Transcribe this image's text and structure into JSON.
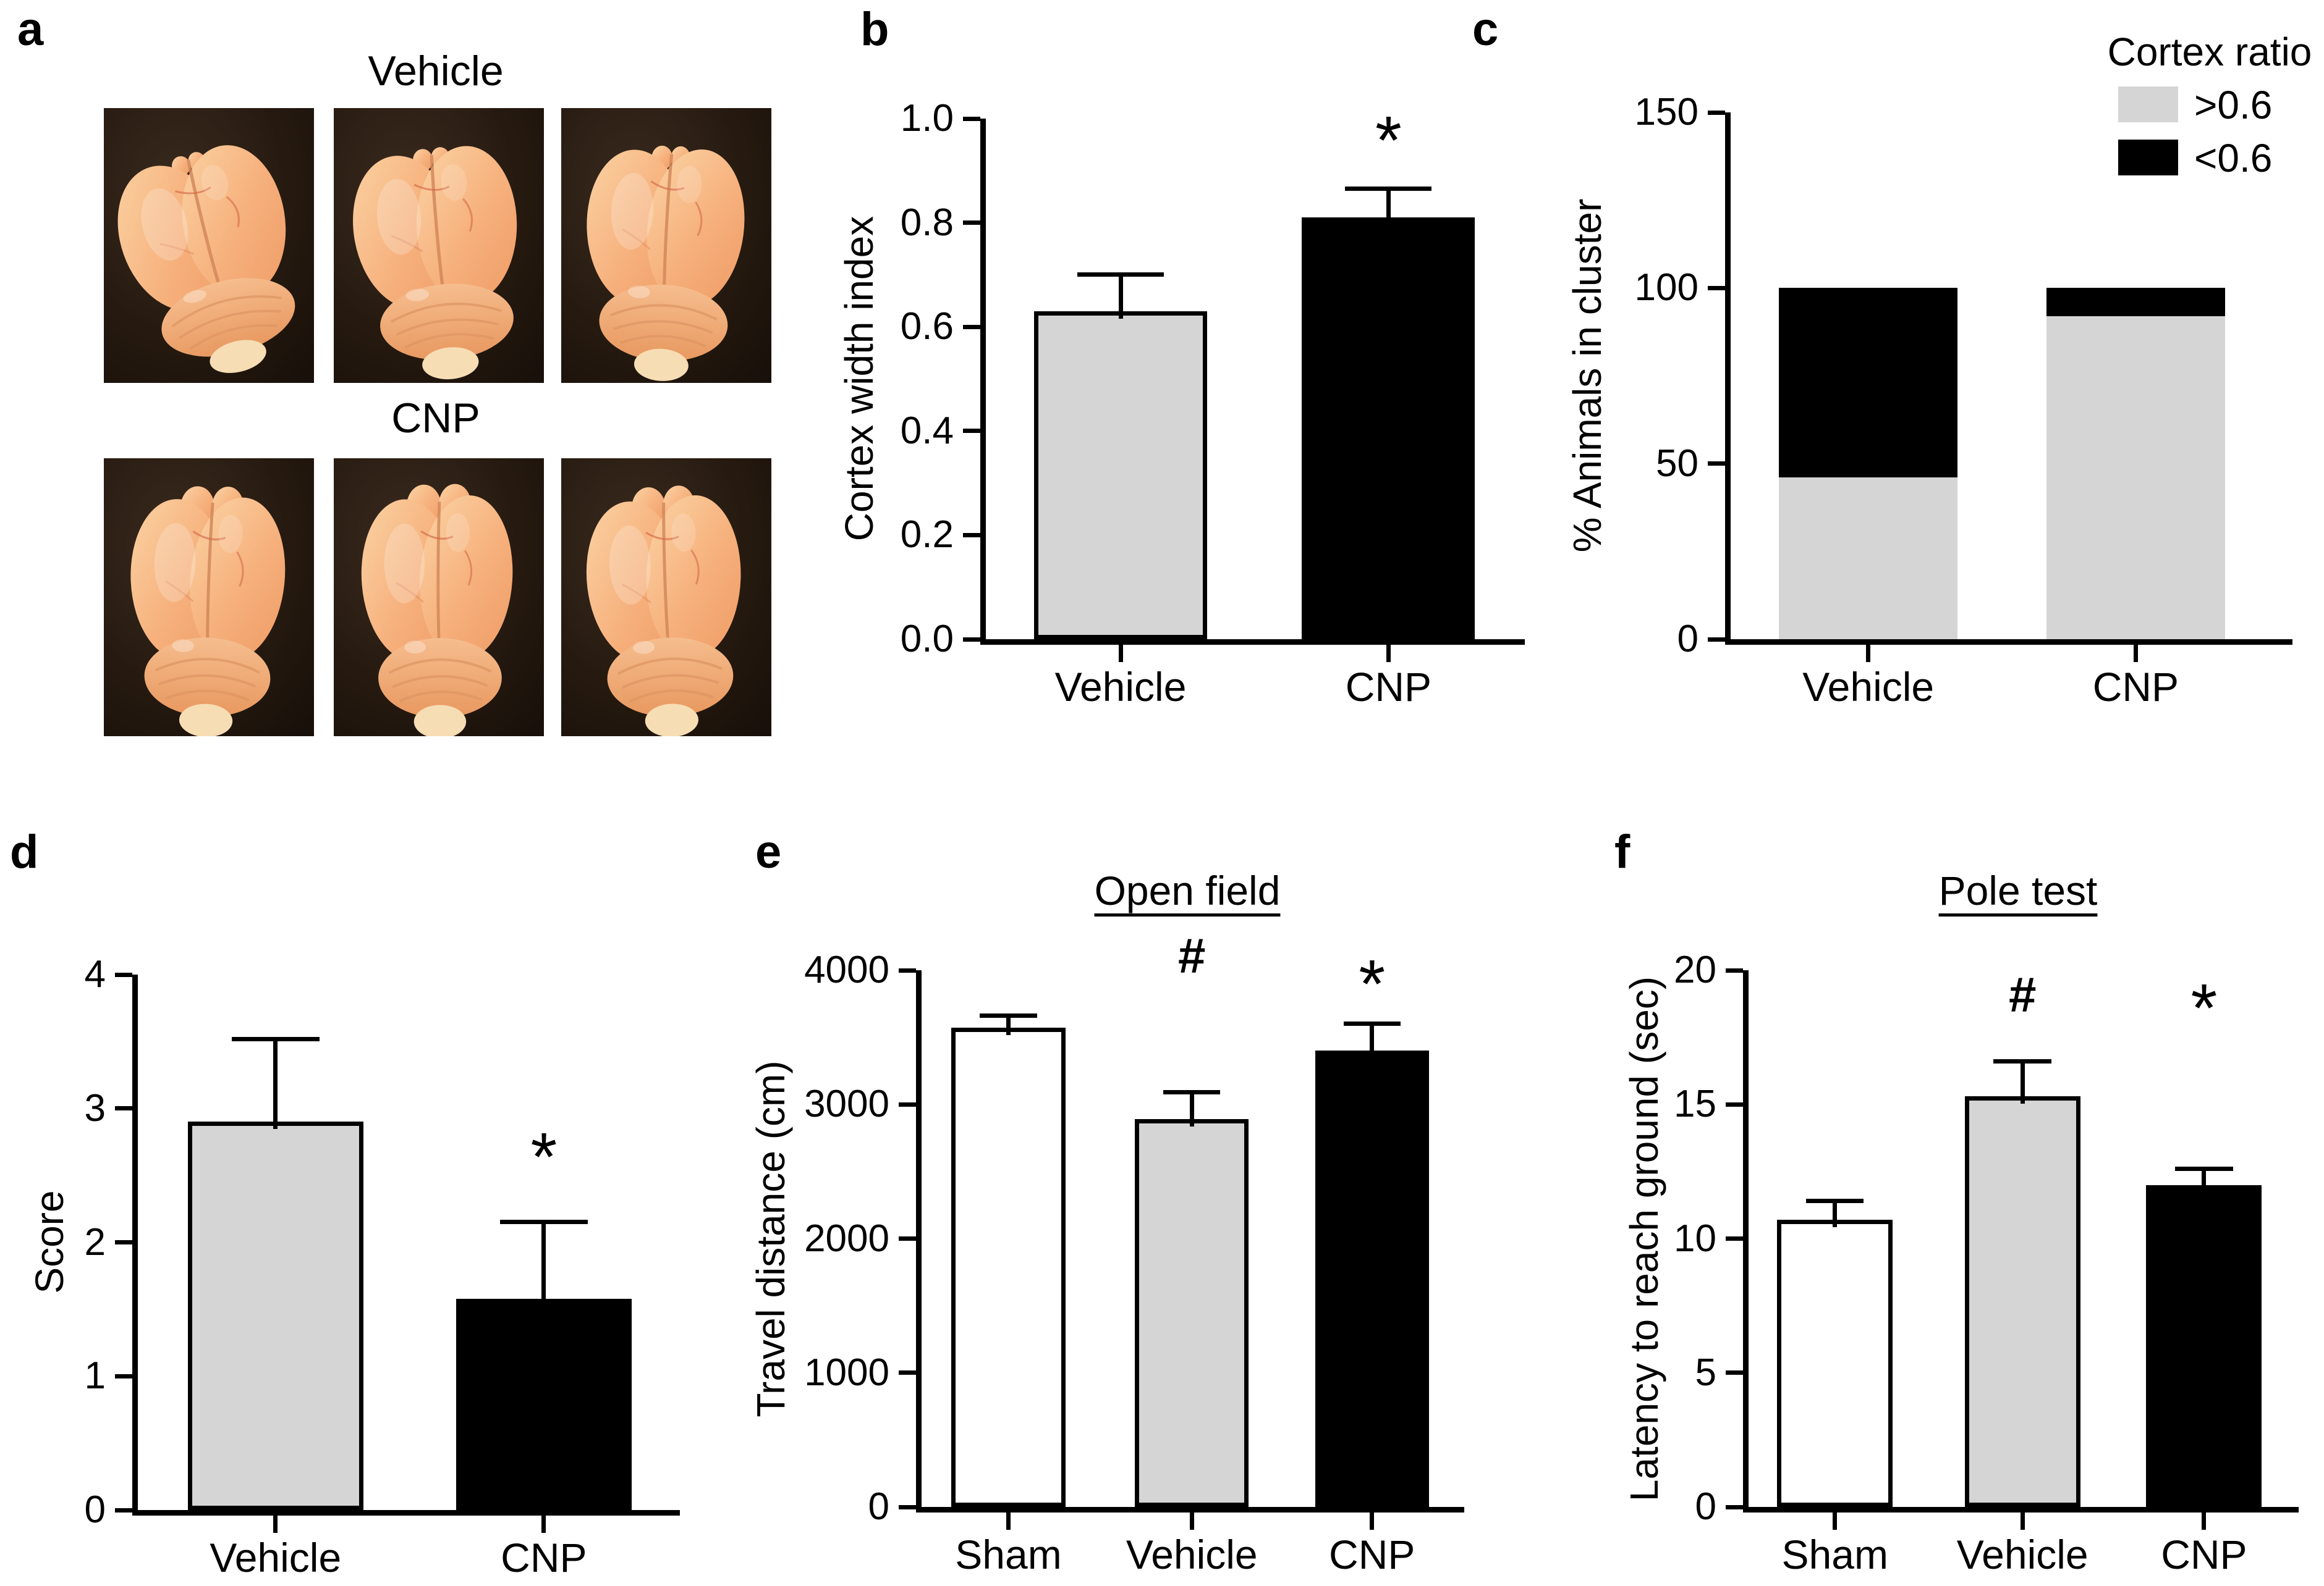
{
  "letters": {
    "a": "a",
    "b": "b",
    "c": "c",
    "d": "d",
    "e": "e",
    "f": "f"
  },
  "panel_a": {
    "groups": [
      {
        "label": "Vehicle",
        "photo_count": 3
      },
      {
        "label": "CNP",
        "photo_count": 3
      }
    ]
  },
  "colors": {
    "gray_fill": "#d5d5d5",
    "black_fill": "#000000",
    "white_fill": "#ffffff",
    "axis": "#000000",
    "photo_background": "#241a12",
    "brain_tissue": "#f6b07c"
  },
  "chart_data": [
    {
      "panel": "b",
      "type": "bar",
      "title": "",
      "ylabel": "Cortex width index",
      "ylim": [
        0,
        1.0
      ],
      "yticks": [
        0,
        0.2,
        0.4,
        0.6,
        0.8,
        1.0
      ],
      "ytick_labels": [
        "0.0",
        "0.2",
        "0.4",
        "0.6",
        "0.8",
        "1.0"
      ],
      "categories": [
        "Vehicle",
        "CNP"
      ],
      "values": [
        0.63,
        0.81
      ],
      "errors": [
        0.07,
        0.055
      ],
      "annotations": [
        "",
        "*"
      ],
      "annotation_y": [
        null,
        0.98
      ],
      "bar_fills": [
        "#d5d5d5",
        "#000000"
      ],
      "bar_centers_pct": [
        25.0,
        74.7
      ],
      "bar_width_pct": 32.1,
      "grid": false,
      "legend": null
    },
    {
      "panel": "c",
      "type": "stacked-bar",
      "title": "",
      "ylabel": "% Animals in cluster",
      "ylim": [
        0,
        150
      ],
      "yticks": [
        0,
        50,
        100,
        150
      ],
      "ytick_labels": [
        "0",
        "50",
        "100",
        "150"
      ],
      "categories": [
        "Vehicle",
        "CNP"
      ],
      "series": [
        {
          "name": ">0.6",
          "color": "#d5d5d5",
          "values": [
            46,
            92
          ]
        },
        {
          "name": "<0.6",
          "color": "#000000",
          "values": [
            54,
            8
          ]
        }
      ],
      "legend_title": "Cortex ratio",
      "legend_position": "top-right",
      "bar_centers_pct": [
        24.5,
        72.1
      ],
      "bar_width_pct": 31.8,
      "grid": false
    },
    {
      "panel": "d",
      "type": "bar",
      "title": "",
      "ylabel": "Score",
      "ylim": [
        0,
        4
      ],
      "yticks": [
        0,
        1,
        2,
        3,
        4
      ],
      "ytick_labels": [
        "0",
        "1",
        "2",
        "3",
        "4"
      ],
      "categories": [
        "Vehicle",
        "CNP"
      ],
      "values": [
        2.9,
        1.58
      ],
      "errors": [
        0.62,
        0.57
      ],
      "annotations": [
        "",
        "*"
      ],
      "annotation_y": [
        null,
        2.72
      ],
      "bar_fills": [
        "#d5d5d5",
        "#000000"
      ],
      "bar_centers_pct": [
        25.4,
        74.9
      ],
      "bar_width_pct": 32.4,
      "grid": false,
      "legend": null
    },
    {
      "panel": "e",
      "type": "bar",
      "title": "Open field",
      "ylabel": "Travel distance (cm)",
      "ylim": [
        0,
        4000
      ],
      "yticks": [
        0,
        1000,
        2000,
        3000,
        4000
      ],
      "ytick_labels": [
        "0",
        "1000",
        "2000",
        "3000",
        "4000"
      ],
      "categories": [
        "Sham",
        "Vehicle",
        "CNP"
      ],
      "values": [
        3570,
        2890,
        3400
      ],
      "errors": [
        90,
        200,
        200
      ],
      "annotations": [
        "",
        "#",
        "*"
      ],
      "annotation_y": [
        null,
        4150,
        3980
      ],
      "bar_fills": [
        "#ffffff",
        "#d5d5d5",
        "#000000"
      ],
      "bar_centers_pct": [
        16.0,
        49.8,
        83.0
      ],
      "bar_width_pct": 21,
      "grid": false,
      "legend": null
    },
    {
      "panel": "f",
      "type": "bar",
      "title": "Pole test",
      "ylabel": "Latency to reach ground (sec)",
      "ylim": [
        0,
        20
      ],
      "yticks": [
        0,
        5,
        10,
        15,
        20
      ],
      "ytick_labels": [
        "0",
        "5",
        "10",
        "15",
        "20"
      ],
      "categories": [
        "Sham",
        "Vehicle",
        "CNP"
      ],
      "values": [
        10.7,
        15.3,
        12.0
      ],
      "errors": [
        0.7,
        1.3,
        0.6
      ],
      "annotations": [
        "",
        "#",
        "*"
      ],
      "annotation_y": [
        null,
        19.3,
        19.0
      ],
      "bar_fills": [
        "#ffffff",
        "#d5d5d5",
        "#000000"
      ],
      "bar_centers_pct": [
        15.7,
        49.8,
        82.8
      ],
      "bar_width_pct": 21,
      "grid": false,
      "legend": null
    }
  ]
}
